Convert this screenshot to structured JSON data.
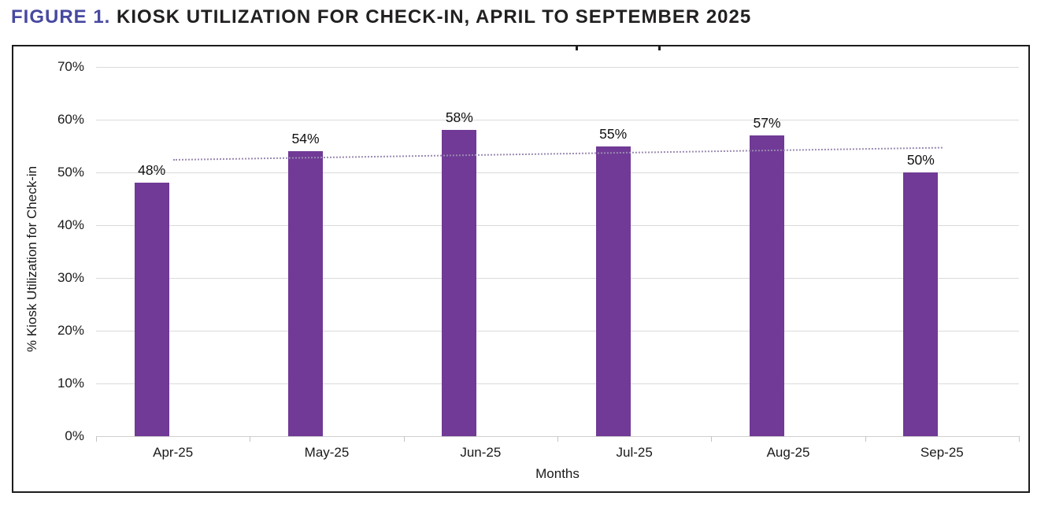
{
  "figure": {
    "label": "FIGURE 1.",
    "title": "KIOSK UTILIZATION FOR CHECK-IN, APRIL TO SEPTEMBER 2025"
  },
  "chart_data": {
    "type": "bar",
    "categories": [
      "Apr-25",
      "May-25",
      "Jun-25",
      "Jul-25",
      "Aug-25",
      "Sep-25"
    ],
    "values": [
      48,
      54,
      58,
      55,
      57,
      50
    ],
    "data_labels": [
      "48%",
      "54%",
      "58%",
      "55%",
      "57%",
      "50%"
    ],
    "xlabel": "Months",
    "ylabel": "% Kiosk Utilization for Check-in",
    "ylim": [
      0,
      70
    ],
    "ytick_step": 10,
    "ytick_labels": [
      "0%",
      "10%",
      "20%",
      "30%",
      "40%",
      "50%",
      "60%",
      "70%"
    ],
    "grid": true,
    "legend": "none",
    "bar_color": "#703a96",
    "trendline": {
      "style": "dotted",
      "color": "#9a8ab1",
      "start_value": 52.6,
      "end_value": 54.9
    }
  },
  "colors": {
    "figure_label": "#4749a0",
    "figure_title_text": "#221f20",
    "chart_border": "#1c1c1c",
    "gridline": "#dadada",
    "bar": "#703a96",
    "trendline": "#9a8ab1"
  }
}
